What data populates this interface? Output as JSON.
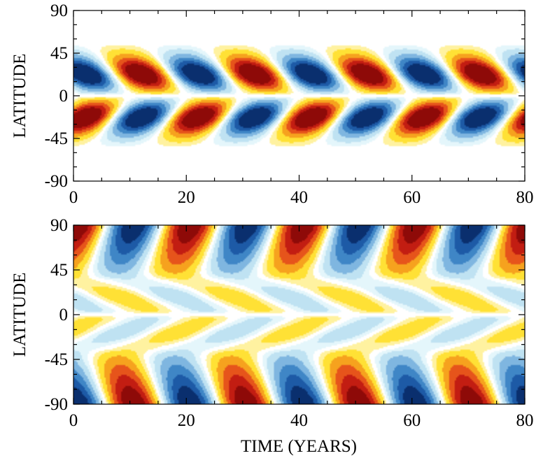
{
  "chart_data": [
    {
      "type": "heatmap",
      "panel": "top",
      "title": "",
      "xlabel": "",
      "ylabel": "LATITUDE",
      "xlim": [
        0,
        80
      ],
      "ylim": [
        -90,
        90
      ],
      "xticks": [
        0,
        20,
        40,
        60,
        80
      ],
      "yticks": [
        -90,
        -45,
        0,
        45,
        90
      ],
      "xtick_labels": [
        "0",
        "20",
        "40",
        "60",
        "80"
      ],
      "ytick_labels": [
        "-90",
        "-45",
        "0",
        "45",
        "90"
      ],
      "cycle_period_years": 20,
      "grid": false,
      "colormap": [
        "#0a2f6e",
        "#1d5aa6",
        "#3f86c6",
        "#7fb6e0",
        "#bfe2f2",
        "#e4f6fb",
        "#ffffff",
        "#fff2a0",
        "#ffe135",
        "#f6a21e",
        "#e6541b",
        "#c21d12",
        "#8e0a08"
      ],
      "description_values": "Antisymmetric butterfly pattern confined to |latitude| < 55, equatorward-migrating lobes, polarity alternating every 10 years"
    },
    {
      "type": "heatmap",
      "panel": "bottom",
      "title": "",
      "xlabel": "TIME (YEARS)",
      "ylabel": "LATITUDE",
      "xlim": [
        0,
        80
      ],
      "ylim": [
        -90,
        90
      ],
      "xticks": [
        0,
        20,
        40,
        60,
        80
      ],
      "yticks": [
        -90,
        -45,
        0,
        45,
        90
      ],
      "xtick_labels": [
        "0",
        "20",
        "40",
        "60",
        "80"
      ],
      "ytick_labels": [
        "-90",
        "-45",
        "0",
        "45",
        "90"
      ],
      "cycle_period_years": 20,
      "grid": false,
      "colormap": [
        "#0a2f6e",
        "#1d5aa6",
        "#3f86c6",
        "#7fb6e0",
        "#bfe2f2",
        "#e4f6fb",
        "#ffffff",
        "#fff2a0",
        "#ffe135",
        "#f6a21e",
        "#e6541b",
        "#c21d12",
        "#8e0a08"
      ],
      "description_values": "Strong polar fields near |latitude| 75-90 reversing every 10 years, poleward surges at mid latitudes, weak low-latitude butterfly"
    }
  ]
}
